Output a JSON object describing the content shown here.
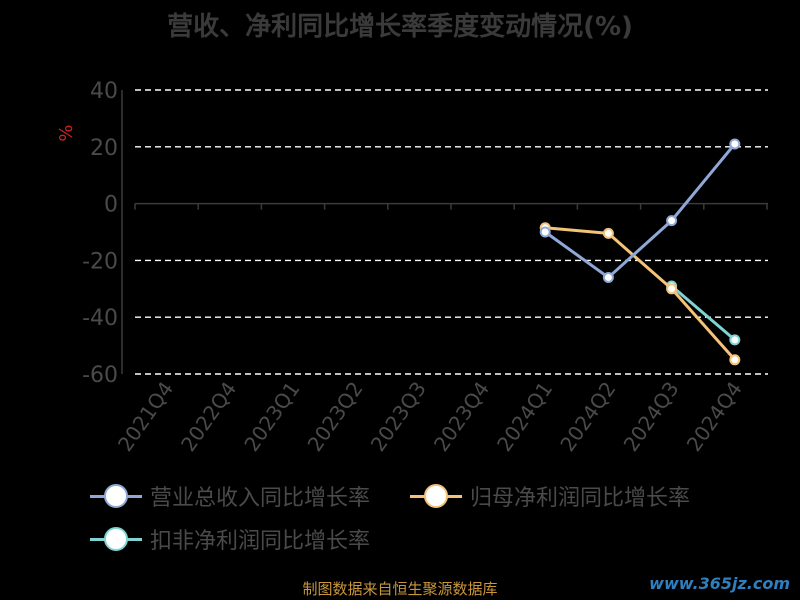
{
  "title": "营收、净利同比增长率季度变动情况(%)",
  "chart_data": {
    "type": "line",
    "title": "营收、净利同比增长率季度变动情况(%)",
    "ylabel": "%",
    "ylim": [
      -60,
      40
    ],
    "yticks": [
      40,
      20,
      0,
      -20,
      -40,
      -60
    ],
    "categories": [
      "2021Q4",
      "2022Q4",
      "2023Q1",
      "2023Q2",
      "2023Q3",
      "2023Q4",
      "2024Q1",
      "2024Q2",
      "2024Q3",
      "2024Q4"
    ],
    "grid": true,
    "legend_position": "bottom",
    "series": [
      {
        "name": "营业总收入同比增长率",
        "color": "#8fa8d8",
        "values": [
          null,
          null,
          null,
          null,
          null,
          null,
          -10,
          -26,
          -6,
          21
        ]
      },
      {
        "name": "归母净利润同比增长率",
        "color": "#f5c27a",
        "values": [
          null,
          null,
          null,
          null,
          null,
          null,
          -8.5,
          -10.5,
          -30,
          -55
        ]
      },
      {
        "name": "扣非净利润同比增长率",
        "color": "#7fd3d3",
        "values": [
          null,
          null,
          null,
          null,
          null,
          null,
          null,
          null,
          -29,
          -48
        ]
      }
    ]
  },
  "source_note": "制图数据来自恒生聚源数据库",
  "watermark": "www.365jz.com"
}
